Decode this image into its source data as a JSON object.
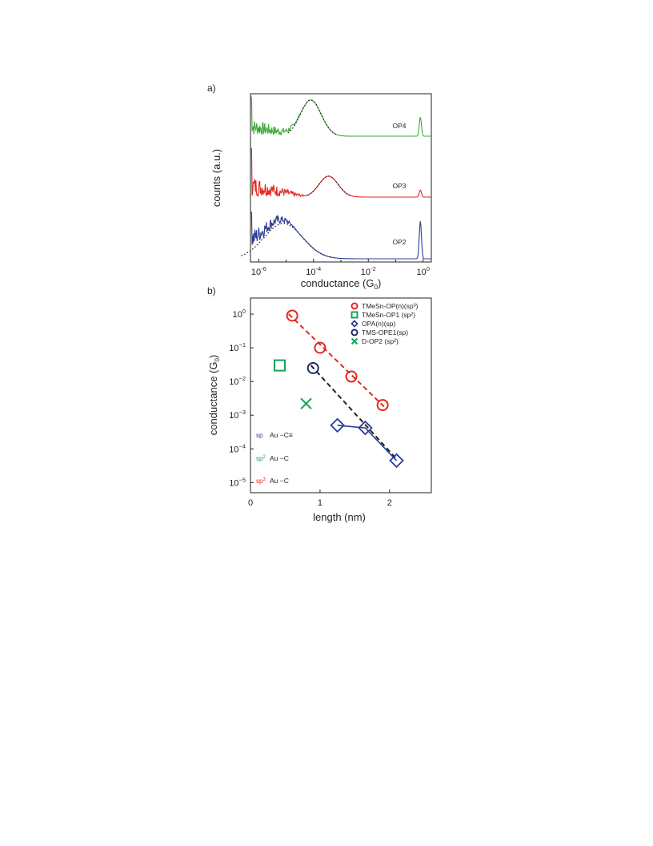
{
  "chart_data": [
    {
      "panel": "a)",
      "type": "line",
      "xlabel": "conductance (G",
      "xlabel_sub": "0",
      "xlabel_close": ")",
      "ylabel": "counts (a.u.)",
      "x_scale": "log",
      "xlim": [
        5e-07,
        2
      ],
      "x_ticks": [
        {
          "base": "10",
          "exp": "-6",
          "value": 1e-06
        },
        {
          "base": "10",
          "exp": "-4",
          "value": 0.0001
        },
        {
          "base": "10",
          "exp": "-2",
          "value": 0.01
        },
        {
          "base": "10",
          "exp": "0",
          "value": 1
        }
      ],
      "series": [
        {
          "name": "OP4",
          "color": "#3aa935",
          "offset": 2,
          "noise_until": 5e-05,
          "peak_log": -4.1,
          "peak_height": 0.95,
          "peak_width": 0.38,
          "baseline": 0.0,
          "end_peak": 0.5
        },
        {
          "name": "OP3",
          "color": "#e3261e",
          "offset": 1,
          "noise_until": 6e-05,
          "peak_log": -3.45,
          "peak_height": 0.45,
          "peak_width": 0.35,
          "baseline": 0.0,
          "end_peak": 0.15
        },
        {
          "name": "OP2",
          "color": "#2b3c93",
          "offset": 0,
          "noise_until": 3e-05,
          "peak_log": -5.1,
          "peak_height": 0.8,
          "peak_width": 0.7,
          "baseline": 0.0,
          "end_peak": 0.85
        }
      ],
      "fits": [
        {
          "series": "OP4",
          "style": "dotted",
          "color": "#231f20"
        },
        {
          "series": "OP3",
          "style": "dotted",
          "color": "#231f20"
        },
        {
          "series": "OP2",
          "style": "dotted",
          "color": "#231f20"
        }
      ]
    },
    {
      "panel": "b)",
      "type": "scatter",
      "xlabel": "length (nm)",
      "ylabel": "conductance (G",
      "ylabel_sub": "0",
      "ylabel_close": ")",
      "y_scale": "log",
      "xlim": [
        0,
        2.6
      ],
      "ylim": [
        5e-06,
        3
      ],
      "x_ticks": [
        "0",
        "1",
        "2"
      ],
      "x_tick_values": [
        0,
        1,
        2
      ],
      "y_ticks": [
        {
          "base": "10",
          "exp": "0",
          "value": 1
        },
        {
          "base": "10",
          "exp": "−1",
          "value": 0.1
        },
        {
          "base": "10",
          "exp": "−2",
          "value": 0.01
        },
        {
          "base": "10",
          "exp": "−3",
          "value": 0.001
        },
        {
          "base": "10",
          "exp": "−4",
          "value": 0.0001
        },
        {
          "base": "10",
          "exp": "−5",
          "value": 1e-05
        }
      ],
      "series": [
        {
          "name": "TMeSn-OP(n)(sp³)",
          "marker": "circle",
          "color": "#e3261e",
          "line": "dashed",
          "x": [
            0.6,
            1.0,
            1.45,
            1.9
          ],
          "y": [
            0.9,
            0.1,
            0.014,
            0.002
          ]
        },
        {
          "name": "TMeSn-OP1 (sp²)",
          "marker": "square",
          "color": "#17a15a",
          "line": "none",
          "x": [
            0.42
          ],
          "y": [
            0.03
          ]
        },
        {
          "name": "OPA(n)(sp)",
          "marker": "diamond",
          "color": "#2b3c93",
          "line": "solid",
          "x": [
            1.25,
            1.65,
            2.1
          ],
          "y": [
            0.0005,
            0.00042,
            4.5e-05
          ]
        },
        {
          "name": "TMS-OPE1(sp)",
          "marker": "circle",
          "color": "#1d2a6a",
          "line": "none",
          "x": [
            0.9
          ],
          "y": [
            0.025
          ]
        },
        {
          "name": "D-OP2 (sp²)",
          "marker": "x",
          "color": "#17a15a",
          "line": "none",
          "x": [
            0.8
          ],
          "y": [
            0.0022
          ]
        }
      ],
      "fit_lines": [
        {
          "color": "#e3261e",
          "style": "dashed",
          "x": [
            0.55,
            1.92
          ],
          "y": [
            1.0,
            0.0018
          ]
        },
        {
          "color": "#231f20",
          "style": "dashed",
          "x": [
            0.87,
            2.1
          ],
          "y": [
            0.03,
            5e-05
          ]
        }
      ],
      "inset_labels": [
        {
          "hyb": "sp",
          "hyb_sup": "",
          "color": "#2b3c93",
          "text": "Au ",
          "bond": "−C≡"
        },
        {
          "hyb": "sp",
          "hyb_sup": "2",
          "color": "#17a15a",
          "text": "Au ",
          "bond": "−C"
        },
        {
          "hyb": "sp",
          "hyb_sup": "3",
          "color": "#e3261e",
          "text": "Au",
          "bond": "−C"
        }
      ],
      "legend_position": "top-right"
    }
  ]
}
